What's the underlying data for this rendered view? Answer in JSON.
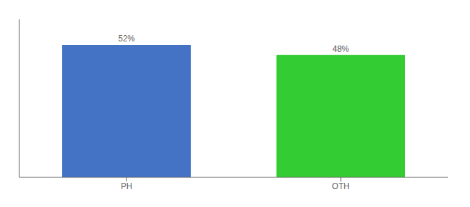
{
  "chart_data": {
    "type": "bar",
    "categories": [
      "PH",
      "OTH"
    ],
    "values": [
      52,
      48
    ],
    "value_labels": [
      "52%",
      "48%"
    ],
    "colors": [
      "#4472c4",
      "#33cc33"
    ],
    "ylim": [
      0,
      62
    ],
    "data_labels": true,
    "tick_labels": "x",
    "grid": false
  }
}
